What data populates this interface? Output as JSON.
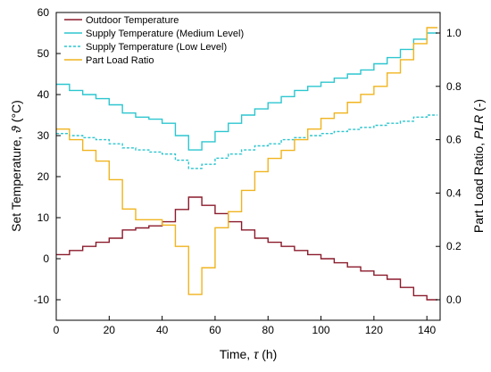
{
  "chart_data": {
    "type": "line",
    "xlabel_prefix": "Time, ",
    "xlabel_symbol": "τ",
    "xlabel_suffix": " (h)",
    "ylabel_prefix": "Set Temperature, ",
    "ylabel_symbol": "ϑ",
    "ylabel_suffix": " (°C)",
    "y2label_prefix": "Part Load Ratio, ",
    "y2label_symbol": "PLR",
    "y2label_suffix": " (-)",
    "xlim": [
      0,
      145
    ],
    "ylim": [
      -15,
      60
    ],
    "y2lim": [
      -0.0769,
      1.0769
    ],
    "xticks": [
      0,
      20,
      40,
      60,
      80,
      100,
      120,
      140
    ],
    "yticks": [
      -10,
      0,
      10,
      20,
      30,
      40,
      50,
      60
    ],
    "y2ticks": [
      0.0,
      0.2,
      0.4,
      0.6,
      0.8,
      1.0
    ],
    "xtick_labels": [
      "0",
      "20",
      "40",
      "60",
      "80",
      "100",
      "120",
      "140"
    ],
    "ytick_labels": [
      "-10",
      "0",
      "10",
      "20",
      "30",
      "40",
      "50",
      "60"
    ],
    "y2tick_labels": [
      "0.0",
      "0.2",
      "0.4",
      "0.6",
      "0.8",
      "1.0"
    ],
    "grid": false,
    "legend_position": "top-left",
    "series": [
      {
        "name": "Outdoor Temperature",
        "axis": "left",
        "step": true,
        "style": "solid",
        "color": "#8B1A2B",
        "x": [
          0,
          5,
          10,
          15,
          20,
          25,
          30,
          35,
          40,
          45,
          50,
          55,
          60,
          65,
          70,
          75,
          80,
          85,
          90,
          95,
          100,
          105,
          110,
          115,
          120,
          125,
          130,
          135,
          140,
          144
        ],
        "y": [
          1,
          2,
          3,
          4,
          5,
          7,
          7.5,
          8,
          9,
          12,
          15,
          13,
          11,
          9,
          7,
          5,
          4,
          3,
          2,
          1,
          0,
          -1,
          -2,
          -3,
          -4,
          -5,
          -7,
          -9,
          -10,
          -10
        ]
      },
      {
        "name": "Supply Temperature (Medium Level)",
        "axis": "left",
        "step": true,
        "style": "solid",
        "color": "#2CC6CF",
        "x": [
          0,
          5,
          10,
          15,
          20,
          25,
          30,
          35,
          40,
          45,
          50,
          55,
          60,
          65,
          70,
          75,
          80,
          85,
          90,
          95,
          100,
          105,
          110,
          115,
          120,
          125,
          130,
          135,
          140,
          144
        ],
        "y": [
          42.5,
          41,
          40,
          39,
          37.5,
          35.5,
          34.5,
          34,
          33,
          30,
          26.5,
          28.5,
          31,
          33,
          35,
          36.5,
          38,
          39.5,
          41,
          42,
          43,
          44,
          45,
          46,
          47.5,
          49,
          51,
          53.5,
          55,
          55
        ]
      },
      {
        "name": "Supply Temperature (Low Level)",
        "axis": "left",
        "step": true,
        "style": "dashed",
        "color": "#2CC6CF",
        "x": [
          0,
          5,
          10,
          15,
          20,
          25,
          30,
          35,
          40,
          45,
          50,
          55,
          60,
          65,
          70,
          75,
          80,
          85,
          90,
          95,
          100,
          105,
          110,
          115,
          120,
          125,
          130,
          135,
          140,
          144
        ],
        "y": [
          30.5,
          30,
          29.5,
          29,
          28,
          27,
          26.5,
          26,
          25.5,
          24,
          22,
          23,
          24.5,
          25.5,
          26.5,
          27.5,
          28,
          29,
          29.5,
          30,
          30.5,
          31,
          31.5,
          32,
          32.5,
          33,
          33.5,
          34.5,
          35,
          35
        ]
      },
      {
        "name": "Part Load Ratio",
        "axis": "right",
        "step": true,
        "style": "solid",
        "color": "#F0B41E",
        "x": [
          0,
          5,
          10,
          15,
          20,
          25,
          30,
          35,
          40,
          45,
          50,
          55,
          60,
          65,
          70,
          75,
          80,
          85,
          90,
          95,
          100,
          105,
          110,
          115,
          120,
          125,
          130,
          135,
          140,
          144
        ],
        "y": [
          0.64,
          0.6,
          0.56,
          0.52,
          0.45,
          0.34,
          0.3,
          0.3,
          0.28,
          0.2,
          0.02,
          0.12,
          0.27,
          0.33,
          0.41,
          0.48,
          0.53,
          0.56,
          0.6,
          0.64,
          0.68,
          0.7,
          0.74,
          0.77,
          0.8,
          0.85,
          0.9,
          0.96,
          1.02,
          1.02
        ]
      }
    ]
  }
}
